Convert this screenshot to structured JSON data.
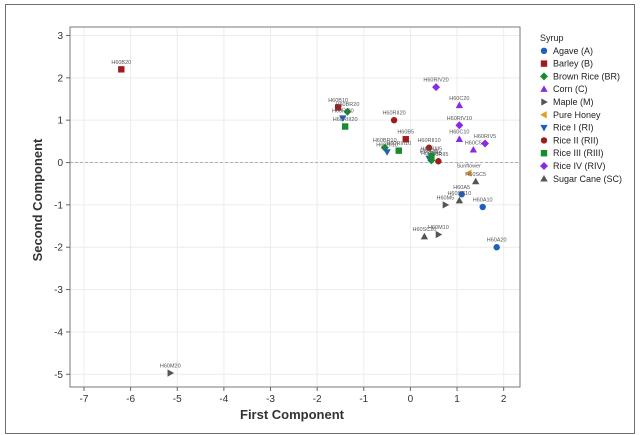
{
  "chart_data": {
    "type": "scatter",
    "xlabel": "First Component",
    "ylabel": "Second Component",
    "xlim": [
      -7.3,
      2.35
    ],
    "ylim": [
      -5.3,
      3.2
    ],
    "x_ticks": [
      -7,
      -6,
      -5,
      -4,
      -3,
      -2,
      -1,
      0,
      1,
      2
    ],
    "y_ticks": [
      3,
      2,
      1,
      0,
      -1,
      -2,
      -3,
      -4,
      -5
    ],
    "grid": true,
    "reference_line_y": 0,
    "legend": {
      "title": "Syrup",
      "placement": "right"
    },
    "series": [
      {
        "name": "Agave (A)",
        "color": "#1f5fbf",
        "marker": "circle",
        "points": [
          {
            "x": 1.85,
            "y": -2.0,
            "label": "H60A20"
          },
          {
            "x": 1.55,
            "y": -1.05,
            "label": "H60A10"
          },
          {
            "x": 1.1,
            "y": -0.75,
            "label": "H60A5"
          }
        ]
      },
      {
        "name": "Barley (B)",
        "color": "#a01c1c",
        "marker": "square",
        "points": [
          {
            "x": -6.2,
            "y": 2.2,
            "label": "H60B20"
          },
          {
            "x": -1.55,
            "y": 1.3,
            "label": "H60B10"
          },
          {
            "x": -0.1,
            "y": 0.55,
            "label": "H60B5"
          }
        ]
      },
      {
        "name": "Brown Rice (BR)",
        "color": "#1a8a2e",
        "marker": "diamond",
        "points": [
          {
            "x": -1.35,
            "y": 1.2,
            "label": "H60BR20"
          },
          {
            "x": -0.55,
            "y": 0.35,
            "label": "H60BR10"
          },
          {
            "x": 0.45,
            "y": 0.05,
            "label": "H60BR5"
          }
        ]
      },
      {
        "name": "Corn (C)",
        "color": "#8a2be2",
        "marker": "triangle-up",
        "points": [
          {
            "x": 1.05,
            "y": 1.35,
            "label": "H60C20"
          },
          {
            "x": 1.05,
            "y": 0.55,
            "label": "H60C10"
          },
          {
            "x": 1.35,
            "y": 0.3,
            "label": "H60C5"
          }
        ]
      },
      {
        "name": "Maple (M)",
        "color": "#555555",
        "marker": "triangle-right",
        "points": [
          {
            "x": -5.15,
            "y": -4.97,
            "label": "H60M20"
          },
          {
            "x": 0.6,
            "y": -1.7,
            "label": "H60M10"
          },
          {
            "x": 0.75,
            "y": -1.0,
            "label": "H60M5"
          }
        ]
      },
      {
        "name": "Pure Honey",
        "color": "#e0a020",
        "marker": "triangle-left",
        "points": [
          {
            "x": 1.25,
            "y": -0.25,
            "label": "Sunflower"
          }
        ]
      },
      {
        "name": "Rice I (RI)",
        "color": "#1f5fbf",
        "marker": "triangle-down",
        "points": [
          {
            "x": -1.45,
            "y": 1.05,
            "label": "H60RI20"
          },
          {
            "x": -0.5,
            "y": 0.25,
            "label": "H60RI10"
          },
          {
            "x": 0.4,
            "y": 0.1,
            "label": "H60RI5"
          }
        ]
      },
      {
        "name": "Rice II (RII)",
        "color": "#a01c1c",
        "marker": "circle",
        "points": [
          {
            "x": -0.35,
            "y": 1.0,
            "label": "H60RII20"
          },
          {
            "x": 0.4,
            "y": 0.35,
            "label": "H60RII10"
          },
          {
            "x": 0.6,
            "y": 0.03,
            "label": "H60RII5"
          }
        ]
      },
      {
        "name": "Rice III (RIII)",
        "color": "#1a8a2e",
        "marker": "square",
        "points": [
          {
            "x": -1.4,
            "y": 0.85,
            "label": "H60RIII20"
          },
          {
            "x": -0.25,
            "y": 0.28,
            "label": "H60RIII10"
          },
          {
            "x": 0.45,
            "y": 0.15,
            "label": "H60RIII5"
          }
        ]
      },
      {
        "name": "Rice IV (RIV)",
        "color": "#8a2be2",
        "marker": "diamond",
        "points": [
          {
            "x": 0.55,
            "y": 1.78,
            "label": "H60RIV20"
          },
          {
            "x": 1.05,
            "y": 0.88,
            "label": "H60RIV10"
          },
          {
            "x": 1.6,
            "y": 0.45,
            "label": "H60RIV5"
          }
        ]
      },
      {
        "name": "Sugar Cane (SC)",
        "color": "#555555",
        "marker": "triangle-up",
        "points": [
          {
            "x": 0.3,
            "y": -1.75,
            "label": "H60SC20"
          },
          {
            "x": 1.05,
            "y": -0.9,
            "label": "H60SC10"
          },
          {
            "x": 1.4,
            "y": -0.45,
            "label": "H60SC5"
          }
        ]
      }
    ]
  }
}
